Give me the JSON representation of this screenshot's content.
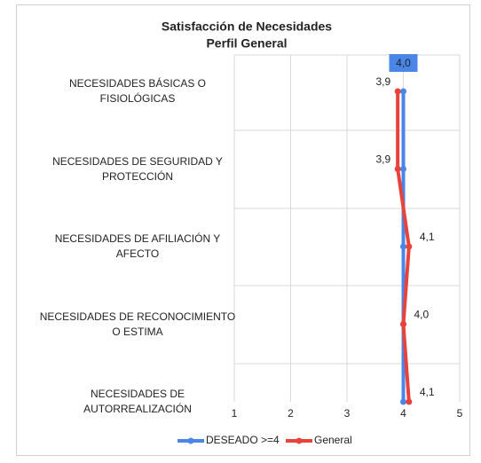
{
  "chart_data": {
    "type": "line",
    "orientation": "horizontal",
    "title": "Satisfacción de Necesidades",
    "subtitle": "Perfil General",
    "categories": [
      "NECESIDADES BÁSICAS O FISIOLÓGICAS",
      "NECESIDADES DE SEGURIDAD Y PROTECCIÓN",
      "NECESIDADES DE AFILIACIÓN Y AFECTO",
      "NECESIDADES DE RECONOCIMIENTO O ESTIMA",
      "NECESIDADES DE AUTORREALIZACIÓN"
    ],
    "series": [
      {
        "name": "DESEADO >=4",
        "color": "#4a86e8",
        "values": [
          4.0,
          4.0,
          4.0,
          4.0,
          4.0
        ],
        "value_labels": [
          "4,0",
          null,
          null,
          null,
          null
        ]
      },
      {
        "name": "General",
        "color": "#e8433a",
        "values": [
          3.9,
          3.9,
          4.1,
          4.0,
          4.1
        ],
        "value_labels": [
          "3,9",
          "3,9",
          "4,1",
          "4,0",
          "4,1"
        ]
      }
    ],
    "xlim": [
      1,
      5
    ],
    "xticks": [
      1,
      2,
      3,
      4,
      5
    ],
    "grid": true,
    "legend": "bottom"
  }
}
